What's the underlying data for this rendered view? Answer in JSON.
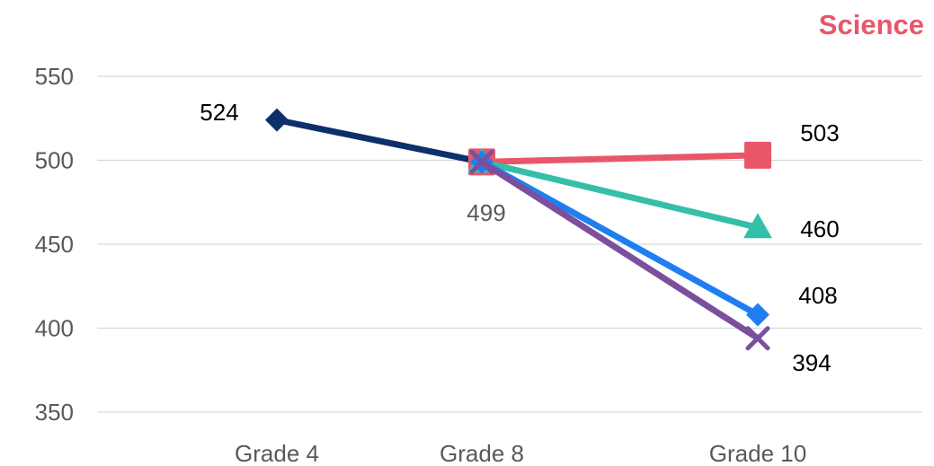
{
  "chart_data": {
    "type": "line",
    "title": "Science",
    "title_color": "#E8566A",
    "categories": [
      "Grade 4",
      "Grade 8",
      "Grade 10"
    ],
    "y_ticks": [
      "550",
      "500",
      "450",
      "400",
      "350"
    ],
    "ylim": [
      350,
      550
    ],
    "grid": true,
    "series": [
      {
        "color": "#0D2F6B",
        "marker": "diamond",
        "points": [
          {
            "x": "Grade 4",
            "y": 524
          },
          {
            "x": "Grade 8",
            "y": 499
          }
        ]
      },
      {
        "color": "#E8566A",
        "marker": "square",
        "points": [
          {
            "x": "Grade 8",
            "y": 499
          },
          {
            "x": "Grade 10",
            "y": 503
          }
        ]
      },
      {
        "color": "#33BFA9",
        "marker": "triangle",
        "points": [
          {
            "x": "Grade 8",
            "y": 499
          },
          {
            "x": "Grade 10",
            "y": 460
          }
        ]
      },
      {
        "color": "#1F7FF0",
        "marker": "diamond",
        "points": [
          {
            "x": "Grade 8",
            "y": 499
          },
          {
            "x": "Grade 10",
            "y": 408
          }
        ]
      },
      {
        "color": "#7B4F9E",
        "marker": "x",
        "points": [
          {
            "x": "Grade 8",
            "y": 499
          },
          {
            "x": "Grade 10",
            "y": 394
          }
        ]
      }
    ],
    "data_labels": [
      "524",
      "499",
      "503",
      "460",
      "408",
      "394"
    ]
  }
}
